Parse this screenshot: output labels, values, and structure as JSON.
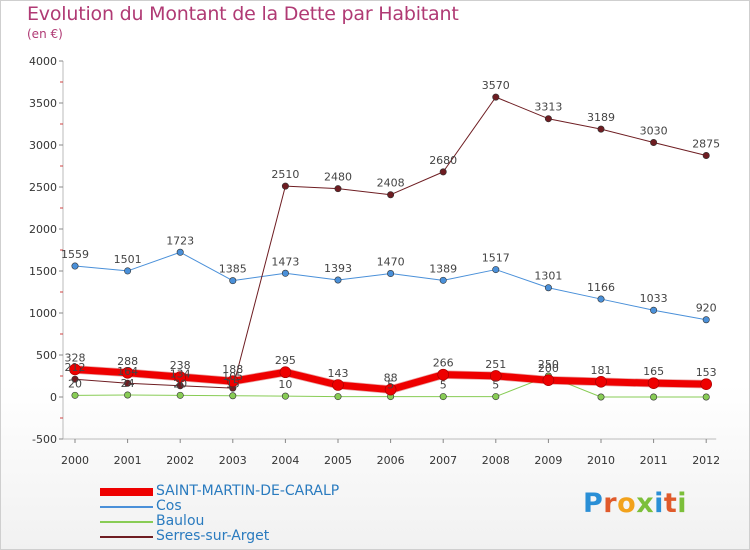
{
  "title": "Evolution du Montant de la Dette par Habitant",
  "subtitle": "(en €)",
  "logo": {
    "text": "Proxiti",
    "letters": [
      {
        "ch": "P",
        "color": "#2a8fd6"
      },
      {
        "ch": "r",
        "color": "#e05a2b"
      },
      {
        "ch": "o",
        "color": "#f2a21c"
      },
      {
        "ch": "x",
        "color": "#7cbf3a"
      },
      {
        "ch": "i",
        "color": "#2a8fd6"
      },
      {
        "ch": "t",
        "color": "#e05a2b"
      },
      {
        "ch": "i",
        "color": "#7cbf3a"
      }
    ]
  },
  "chart_data": {
    "type": "line",
    "x": [
      2000,
      2001,
      2002,
      2003,
      2004,
      2005,
      2006,
      2007,
      2008,
      2009,
      2010,
      2011,
      2012
    ],
    "ylim": [
      -500,
      4000
    ],
    "yticks": [
      -500,
      0,
      500,
      1000,
      1500,
      2000,
      2500,
      3000,
      3500,
      4000
    ],
    "grid": false,
    "legend_position": "bottom-left",
    "series": [
      {
        "name": "SAINT-MARTIN-DE-CARALP",
        "color": "#ee0000",
        "width": 7,
        "values": [
          328,
          288,
          238,
          188,
          295,
          143,
          88,
          266,
          251,
          200,
          181,
          165,
          153
        ],
        "labels": [
          "328",
          "288",
          "238",
          "188",
          "295",
          "143",
          "88",
          "266",
          "251",
          "200",
          "181",
          "165",
          "153"
        ]
      },
      {
        "name": "Cos",
        "color": "#4a90d9",
        "width": 1,
        "values": [
          1559,
          1501,
          1723,
          1385,
          1473,
          1393,
          1470,
          1389,
          1517,
          1301,
          1166,
          1033,
          920
        ],
        "labels": [
          "1559",
          "1501",
          "1723",
          "1385",
          "1473",
          "1393",
          "1470",
          "1389",
          "1517",
          "1301",
          "1166",
          "1033",
          "920"
        ]
      },
      {
        "name": "Baulou",
        "color": "#88cc55",
        "width": 1,
        "values": [
          20,
          24,
          20,
          15,
          10,
          5,
          5,
          5,
          5,
          250,
          0,
          0,
          0
        ],
        "labels": [
          "20",
          "24",
          "20",
          "15",
          "10",
          "",
          "5",
          "5",
          "5",
          "250",
          "",
          "",
          ""
        ]
      },
      {
        "name": "Serres-sur-Arget",
        "color": "#6e1d22",
        "width": 1,
        "values": [
          212,
          164,
          134,
          105,
          2510,
          2480,
          2408,
          2680,
          3570,
          3313,
          3189,
          3030,
          2875
        ],
        "labels": [
          "212",
          "164",
          "134",
          "105",
          "2510",
          "2480",
          "2408",
          "2680",
          "3570",
          "3313",
          "3189",
          "3030",
          "2875"
        ]
      }
    ]
  }
}
